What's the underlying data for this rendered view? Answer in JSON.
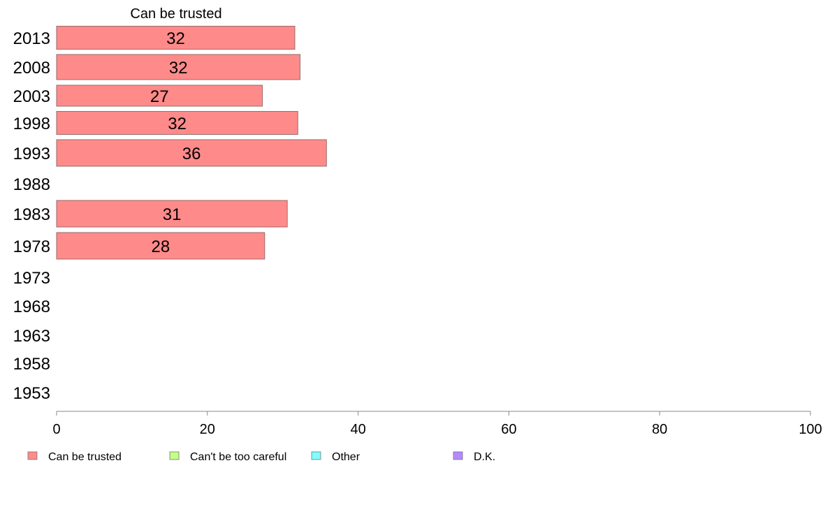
{
  "chart_data": {
    "type": "bar",
    "orientation": "horizontal",
    "title": "Can be trusted",
    "categories": [
      "2013",
      "2008",
      "2003",
      "1998",
      "1993",
      "1988",
      "1983",
      "1978",
      "1973",
      "1968",
      "1963",
      "1958",
      "1953"
    ],
    "series": [
      {
        "name": "Can be trusted",
        "color": "#ff8a8a",
        "values": [
          31.6,
          32.3,
          27.3,
          32.0,
          35.8,
          null,
          30.6,
          27.6,
          null,
          null,
          null,
          null,
          null
        ],
        "labels": [
          "32",
          "32",
          "27",
          "32",
          "36",
          "",
          "31",
          "28",
          "",
          "",
          "",
          "",
          ""
        ]
      }
    ],
    "xlim": [
      0,
      100
    ],
    "xticks": [
      "0",
      "20",
      "40",
      "60",
      "80",
      "100"
    ],
    "grid": false,
    "legend_position": "bottom",
    "legend": [
      {
        "label": "Can be trusted",
        "color": "#ff8a8a"
      },
      {
        "label": "Can't be too careful",
        "color": "#c4ff88"
      },
      {
        "label": "Other",
        "color": "#7ffcff"
      },
      {
        "label": "D.K.",
        "color": "#b58aff"
      }
    ]
  }
}
